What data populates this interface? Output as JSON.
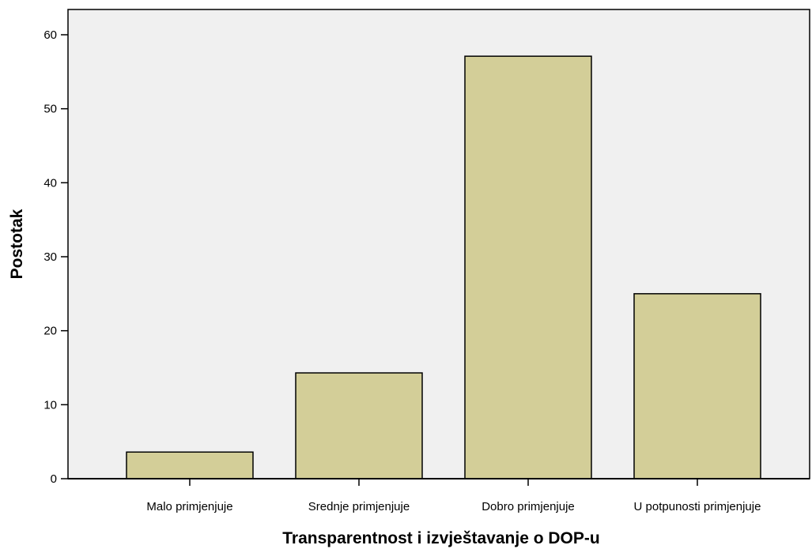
{
  "chart_data": {
    "type": "bar",
    "title": "",
    "xlabel": "Transparentnost i izvještavanje o DOP-u",
    "ylabel": "Postotak",
    "categories": [
      "Malo primjenjuje",
      "Srednje primjenjuje",
      "Dobro primjenjuje",
      "U potpunosti primjenjuje"
    ],
    "values": [
      3.6,
      14.3,
      57.1,
      25.0
    ],
    "ylim": [
      0,
      60
    ],
    "yticks": [
      0,
      10,
      20,
      30,
      40,
      50,
      60
    ],
    "grid": false,
    "legend": "none",
    "colors": {
      "bar_fill": "#d3ce98",
      "bar_stroke": "#000000",
      "plot_background": "#f0f0f0",
      "axis": "#000000"
    }
  }
}
